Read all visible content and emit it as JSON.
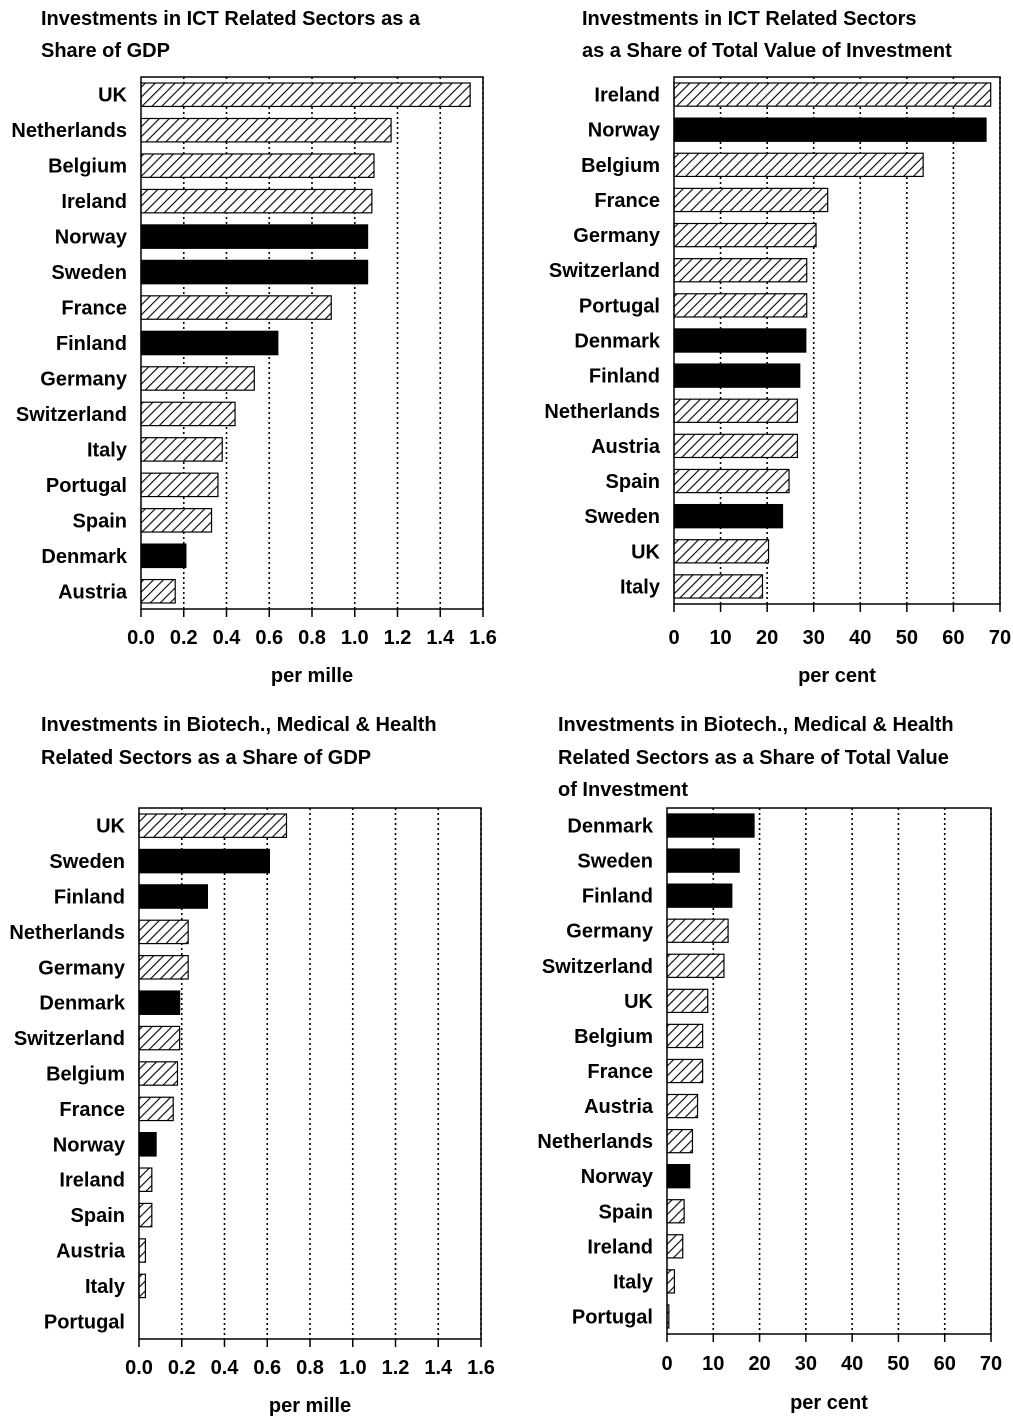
{
  "chart_data": [
    {
      "type": "bar",
      "orientation": "horizontal",
      "title": [
        "Investments in ICT Related Sectors as a",
        "Share of GDP"
      ],
      "xlabel": "per mille",
      "xlim": [
        0,
        1.6
      ],
      "xticks": [
        "0.0",
        "0.2",
        "0.4",
        "0.6",
        "0.8",
        "1.0",
        "1.2",
        "1.4",
        "1.6"
      ],
      "grid": "vertical-dotted",
      "categories": [
        "UK",
        "Netherlands",
        "Belgium",
        "Ireland",
        "Norway",
        "Sweden",
        "France",
        "Finland",
        "Germany",
        "Switzerland",
        "Italy",
        "Portugal",
        "Spain",
        "Denmark",
        "Austria"
      ],
      "values": [
        1.54,
        1.17,
        1.09,
        1.08,
        1.06,
        1.06,
        0.89,
        0.64,
        0.53,
        0.44,
        0.38,
        0.36,
        0.33,
        0.21,
        0.16
      ],
      "nordic": [
        false,
        false,
        false,
        false,
        true,
        true,
        false,
        true,
        false,
        false,
        false,
        false,
        false,
        true,
        false
      ]
    },
    {
      "type": "bar",
      "orientation": "horizontal",
      "title": [
        "Investments in ICT Related Sectors",
        "as a Share of Total Value of Investment"
      ],
      "xlabel": "per cent",
      "xlim": [
        0,
        70
      ],
      "xticks": [
        "0",
        "10",
        "20",
        "30",
        "40",
        "50",
        "60",
        "70"
      ],
      "grid": "vertical-dotted",
      "categories": [
        "Ireland",
        "Norway",
        "Belgium",
        "France",
        "Germany",
        "Switzerland",
        "Portugal",
        "Denmark",
        "Finland",
        "Netherlands",
        "Austria",
        "Spain",
        "Sweden",
        "UK",
        "Italy"
      ],
      "values": [
        68,
        67,
        53.5,
        33,
        30.5,
        28.5,
        28.5,
        28.3,
        27,
        26.5,
        26.5,
        24.7,
        23.3,
        20.3,
        19
      ],
      "nordic": [
        false,
        true,
        false,
        false,
        false,
        false,
        false,
        true,
        true,
        false,
        false,
        false,
        true,
        false,
        false
      ]
    },
    {
      "type": "bar",
      "orientation": "horizontal",
      "title": [
        "Investments in Biotech., Medical & Health",
        "Related Sectors as a Share of GDP"
      ],
      "xlabel": "per mille",
      "xlim": [
        0,
        1.6
      ],
      "xticks": [
        "0.0",
        "0.2",
        "0.4",
        "0.6",
        "0.8",
        "1.0",
        "1.2",
        "1.4",
        "1.6"
      ],
      "grid": "vertical-dotted",
      "categories": [
        "UK",
        "Sweden",
        "Finland",
        "Netherlands",
        "Germany",
        "Denmark",
        "Switzerland",
        "Belgium",
        "France",
        "Norway",
        "Ireland",
        "Spain",
        "Austria",
        "Italy",
        "Portugal"
      ],
      "values": [
        0.69,
        0.61,
        0.32,
        0.23,
        0.23,
        0.19,
        0.19,
        0.18,
        0.16,
        0.08,
        0.06,
        0.06,
        0.03,
        0.03,
        0.0
      ],
      "nordic": [
        false,
        true,
        true,
        false,
        false,
        true,
        false,
        false,
        false,
        true,
        false,
        false,
        false,
        false,
        false
      ]
    },
    {
      "type": "bar",
      "orientation": "horizontal",
      "title": [
        "Investments in Biotech., Medical & Health",
        "Related Sectors as a Share of Total Value",
        "of Investment"
      ],
      "xlabel": "per cent",
      "xlim": [
        0,
        70
      ],
      "xticks": [
        "0",
        "10",
        "20",
        "30",
        "40",
        "50",
        "60",
        "70"
      ],
      "grid": "vertical-dotted",
      "categories": [
        "Denmark",
        "Sweden",
        "Finland",
        "Germany",
        "Switzerland",
        "UK",
        "Belgium",
        "France",
        "Austria",
        "Netherlands",
        "Norway",
        "Spain",
        "Ireland",
        "Italy",
        "Portugal"
      ],
      "values": [
        18.8,
        15.6,
        14,
        13.2,
        12.3,
        8.8,
        7.7,
        7.7,
        6.6,
        5.5,
        4.9,
        3.7,
        3.4,
        1.6,
        0.4
      ],
      "nordic": [
        true,
        true,
        true,
        false,
        false,
        false,
        false,
        false,
        false,
        false,
        true,
        false,
        false,
        false,
        false
      ]
    }
  ],
  "colors": {
    "nordic_fill": "#000000",
    "hatch_stroke": "#000000",
    "background": "#ffffff",
    "grid": "#000000"
  }
}
